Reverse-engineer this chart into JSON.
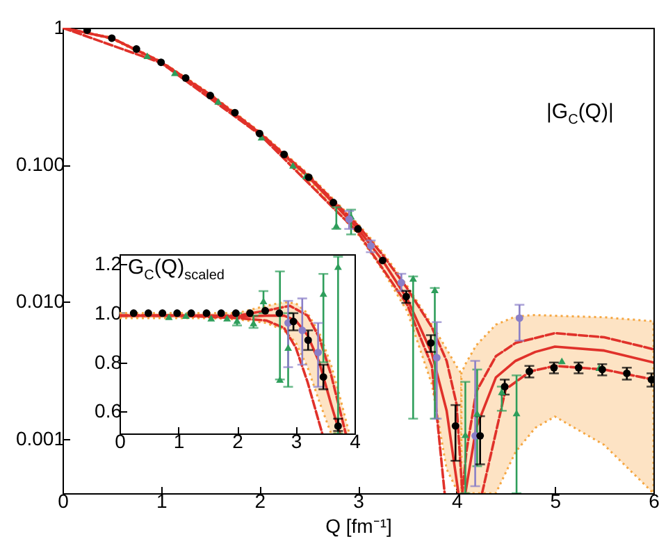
{
  "chart_data": [
    {
      "type": "line",
      "xlabel": "Q [fm⁻¹]",
      "annotations": [
        "|G$_{C}$(Q)|"
      ],
      "log": "y",
      "grid": false,
      "xlim": [
        0,
        6
      ],
      "xticks": [
        0,
        1,
        2,
        3,
        4,
        5,
        6
      ],
      "ylim": [
        0.0004,
        1
      ],
      "yticks": [
        {
          "value": 1,
          "label": "1"
        },
        {
          "value": 0.1,
          "label": "0.100"
        },
        {
          "value": 0.01,
          "label": "0.010"
        },
        {
          "value": 0.001,
          "label": "0.001"
        }
      ],
      "series": [
        {
          "type": "line",
          "color": "#e0312a",
          "line_style": "solid",
          "x": [
            0,
            0.5,
            1,
            1.5,
            2,
            2.5,
            3,
            3.25,
            3.5,
            3.75,
            3.9,
            4.02,
            4.05
          ],
          "values": [
            1,
            0.84,
            0.56,
            0.32,
            0.17,
            0.081,
            0.034,
            0.02,
            0.0105,
            0.0042,
            0.0016,
            0.0004,
            null
          ],
          "upper": [
            1,
            0.85,
            0.57,
            0.33,
            0.175,
            0.085,
            0.037,
            0.023,
            0.013,
            0.0068,
            0.0045,
            0.0032,
            0.003
          ],
          "lower": [
            1,
            0.83,
            0.55,
            0.31,
            0.165,
            0.077,
            0.031,
            0.017,
            0.0085,
            0.0025,
            0.0006,
            0.0004,
            0.0004
          ]
        },
        {
          "type": "line",
          "color": "#e0312a",
          "line_style": "solid",
          "x": [
            4.05,
            4.09,
            4.2,
            4.4,
            4.6,
            4.8,
            5,
            5.5,
            6
          ],
          "values": [
            null,
            0.0004,
            0.0012,
            0.0028,
            0.0037,
            0.0043,
            0.0047,
            0.0044,
            0.0036
          ],
          "upper": [
            0.003,
            0.0035,
            0.0048,
            0.0068,
            0.0078,
            0.008,
            0.0079,
            0.0077,
            0.0072
          ],
          "lower": [
            0.0004,
            0.0004,
            0.0004,
            0.0004,
            0.0008,
            0.0012,
            0.00145,
            0.0009,
            0.0004
          ]
        },
        {
          "type": "line",
          "color": "#e0312a",
          "line_style": "dashed",
          "x": [
            0,
            0.5,
            1,
            1.5,
            2,
            2.5,
            3,
            3.25,
            3.5,
            3.75,
            3.9,
            4.0,
            4.06,
            4.1,
            4.2,
            4.4,
            4.6,
            5,
            5.5,
            6
          ],
          "values": [
            1,
            0.84,
            0.565,
            0.325,
            0.172,
            0.083,
            0.036,
            0.022,
            0.0125,
            0.0065,
            0.0037,
            0.0018,
            0.0004,
            0.0008,
            0.0022,
            0.004,
            0.005,
            0.0059,
            0.0055,
            0.0045
          ]
        },
        {
          "type": "line",
          "color": "#e0312a",
          "line_style": "dashed",
          "x": [
            0,
            1,
            2,
            3,
            3.5,
            3.75,
            3.88
          ],
          "values": [
            1,
            0.555,
            0.167,
            0.032,
            0.0095,
            0.0034,
            0.0004
          ]
        },
        {
          "type": "line",
          "color": "#e0312a",
          "line_style": "dashed",
          "x": [
            4.26,
            4.5,
            4.75,
            5,
            5.5,
            6
          ],
          "values": [
            0.0004,
            0.0023,
            0.0031,
            0.0034,
            0.0032,
            0.0027
          ]
        },
        {
          "type": "scatter",
          "color": "#2e9e5b",
          "marker": "triangle",
          "x": [
            0.86,
            1.14,
            1.58,
            2.02,
            2.34,
            2.47,
            2.78,
            2.93,
            3.56,
            3.78,
            4.09,
            4.21,
            4.46,
            4.61,
            5.07,
            5.45
          ],
          "values": [
            0.625,
            0.47,
            0.29,
            0.159,
            0.099,
            0.083,
            0.036,
            0.042,
            0.0148,
            0.0122,
            0.00107,
            0.00153,
            0.0022,
            0.00154,
            0.0037,
            0.0033
          ],
          "errors": [
            null,
            null,
            null,
            null,
            null,
            null,
            [
              0.034,
              0.049
            ],
            [
              0.031,
              0.047
            ],
            [
              0.0014,
              0.0153
            ],
            [
              0.0014,
              0.0126
            ],
            [
              0.0004,
              0.0026
            ],
            [
              0.00063,
              0.0032
            ],
            [
              0.0016,
              0.0024
            ],
            [
              0.0004,
              0.0029
            ],
            null,
            null
          ]
        },
        {
          "type": "scatter",
          "color": "#8a7fc8",
          "marker": "circle",
          "x": [
            2.91,
            3.13,
            3.44,
            3.8,
            4.19,
            4.64
          ],
          "values": [
            0.04,
            0.0256,
            0.0138,
            0.0039,
            0.00105,
            0.0076
          ],
          "errors": [
            [
              0.034,
              0.046
            ],
            [
              0.023,
              0.028
            ],
            [
              0.012,
              0.016
            ],
            [
              0.0014,
              0.0071
            ],
            [
              0.00045,
              0.0037
            ],
            [
              0.0052,
              0.0095
            ]
          ]
        },
        {
          "type": "scatter",
          "color": "#000000",
          "marker": "circle",
          "x": [
            0.25,
            0.5,
            0.75,
            1.0,
            1.25,
            1.5,
            1.75,
            2.0,
            2.25,
            2.5,
            2.75,
            3.0,
            3.25,
            3.49,
            3.74,
            3.99,
            4.24,
            4.49,
            4.74,
            4.99,
            5.24,
            5.48,
            5.73,
            5.98
          ],
          "values": [
            0.96,
            0.84,
            0.7,
            0.56,
            0.43,
            0.32,
            0.24,
            0.169,
            0.119,
            0.081,
            0.053,
            0.034,
            0.02,
            0.0109,
            0.005,
            0.00124,
            0.00105,
            0.0024,
            0.0031,
            0.0033,
            0.0033,
            0.0032,
            0.003,
            0.0027
          ],
          "errors": [
            null,
            null,
            null,
            null,
            null,
            null,
            null,
            null,
            null,
            null,
            null,
            null,
            null,
            [
              0.0098,
              0.012
            ],
            [
              0.0043,
              0.0057
            ],
            [
              0.00069,
              0.00176
            ],
            [
              0.00065,
              0.00146
            ],
            [
              0.0021,
              0.0027
            ],
            [
              0.0028,
              0.0034
            ],
            [
              0.003,
              0.0036
            ],
            [
              0.003,
              0.0036
            ],
            [
              0.0029,
              0.0035
            ],
            [
              0.0027,
              0.0033
            ],
            [
              0.0024,
              0.003
            ]
          ]
        }
      ]
    },
    {
      "type": "line",
      "annotations": [
        "G$_{C}$(Q)$_{scaled}$"
      ],
      "grid": false,
      "xlim": [
        0,
        4
      ],
      "xticks": [
        0,
        1,
        2,
        3,
        4
      ],
      "ylim": [
        0.51,
        1.24
      ],
      "yticks": [
        0.6,
        0.8,
        {
          "value": 1,
          "label": "1.0"
        },
        1.2
      ],
      "series": [
        {
          "type": "line",
          "color": "#e0312a",
          "line_style": "solid",
          "x": [
            0,
            0.5,
            1,
            1.5,
            2,
            2.5,
            2.8,
            3.0,
            3.2,
            3.4,
            3.6,
            3.75,
            3.9
          ],
          "values": [
            0.99,
            0.99,
            0.99,
            0.99,
            0.985,
            0.99,
            0.99,
            0.97,
            0.91,
            0.8,
            0.63,
            0.51,
            null
          ],
          "upper": [
            1.0,
            1.0,
            1.0,
            1.0,
            1.0,
            1.03,
            1.045,
            1.04,
            1.0,
            0.92,
            0.79,
            0.66,
            0.52
          ],
          "lower": [
            0.98,
            0.98,
            0.98,
            0.98,
            0.975,
            0.96,
            0.93,
            0.88,
            0.78,
            0.64,
            0.51,
            0.51,
            0.51
          ]
        },
        {
          "type": "line",
          "color": "#e0312a",
          "line_style": "dashed",
          "x": [
            0,
            1,
            2,
            2.5,
            2.9,
            3.2,
            3.4,
            3.6,
            3.85
          ],
          "values": [
            0.99,
            0.99,
            0.99,
            1.01,
            1.03,
            0.99,
            0.9,
            0.75,
            0.51
          ]
        },
        {
          "type": "line",
          "color": "#e0312a",
          "line_style": "dashed",
          "x": [
            0,
            1,
            2,
            2.5,
            2.8,
            3.0,
            3.2,
            3.45
          ],
          "values": [
            0.99,
            0.99,
            0.98,
            0.97,
            0.94,
            0.86,
            0.72,
            0.51
          ]
        },
        {
          "type": "scatter",
          "color": "#2e9e5b",
          "marker": "triangle",
          "x": [
            0.84,
            1.13,
            1.56,
            1.83,
            2.0,
            2.28,
            2.45,
            2.73,
            2.87,
            3.47,
            3.72
          ],
          "values": [
            0.985,
            0.99,
            0.98,
            0.98,
            0.97,
            0.96,
            1.05,
            0.73,
            0.86,
            1.08,
            1.19
          ],
          "errors": [
            null,
            null,
            null,
            null,
            [
              0.95,
              1.0
            ],
            [
              0.94,
              0.99
            ],
            [
              1.0,
              1.09
            ],
            [
              0.73,
              1.17
            ],
            [
              0.7,
              1.0
            ],
            [
              0.8,
              1.16
            ],
            [
              0.51,
              1.23
            ]
          ]
        },
        {
          "type": "scatter",
          "color": "#8a7fc8",
          "marker": "circle",
          "x": [
            2.87,
            3.11,
            3.38
          ],
          "values": [
            0.96,
            0.93,
            0.84
          ],
          "errors": [
            [
              0.78,
              1.05
            ],
            [
              0.79,
              1.06
            ],
            [
              0.7,
              0.96
            ]
          ]
        },
        {
          "type": "scatter",
          "color": "#000000",
          "marker": "circle",
          "x": [
            0.24,
            0.49,
            0.73,
            0.98,
            1.22,
            1.48,
            1.73,
            1.98,
            2.22,
            2.48,
            2.72,
            2.96,
            3.21,
            3.47,
            3.72
          ],
          "values": [
            1.0,
            1.0,
            1.0,
            1.0,
            1.0,
            1.0,
            1.0,
            1.0,
            1.0,
            1.01,
            1.0,
            0.966,
            0.89,
            0.74,
            0.54
          ],
          "errors": [
            null,
            null,
            null,
            null,
            null,
            null,
            null,
            null,
            null,
            null,
            null,
            [
              0.93,
              1.0
            ],
            [
              0.85,
              0.93
            ],
            [
              0.69,
              0.79
            ],
            [
              0.52,
              0.57
            ]
          ]
        }
      ]
    }
  ]
}
